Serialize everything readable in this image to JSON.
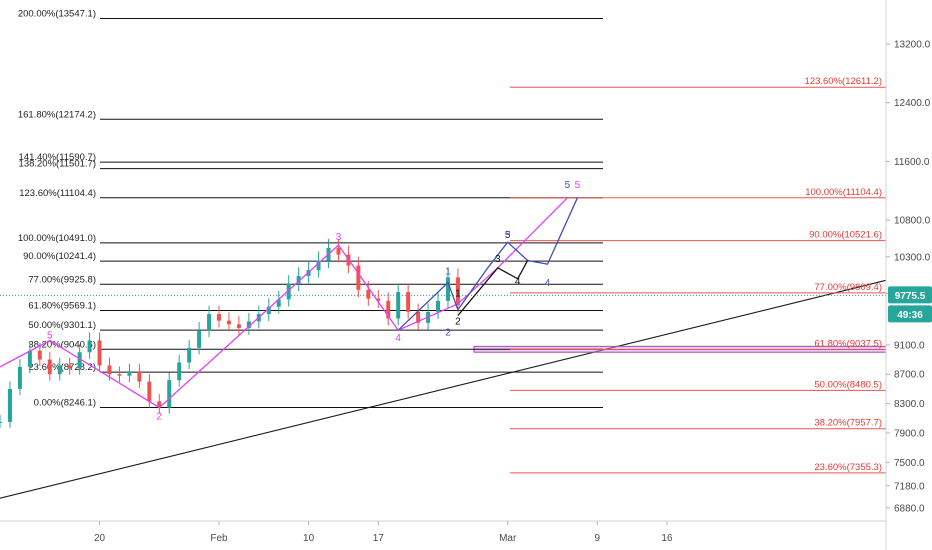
{
  "chart_data": {
    "type": "line",
    "price_axis": {
      "ticks": [
        "13200.0",
        "12400.0",
        "11600.0",
        "10800.0",
        "10300.0",
        "9800.0",
        "9100.0",
        "8700.0",
        "8300.0",
        "7900.0",
        "7500.0",
        "7180.0",
        "6880.0"
      ],
      "tick_values": [
        13200,
        12400,
        11600,
        10800,
        10300,
        9800,
        9100,
        8700,
        8300,
        7900,
        7500,
        7180,
        6880
      ],
      "ylim": [
        6700,
        13800
      ]
    },
    "time_axis": {
      "ticks": [
        "20",
        "Feb",
        "10",
        "17",
        "Mar",
        "9",
        "16"
      ],
      "tick_days": [
        20,
        32,
        41,
        48,
        61,
        70,
        77
      ],
      "xlim": [
        10,
        99
      ]
    },
    "current_price": {
      "price": "9775.5",
      "countdown": "49:36",
      "value": 9775.5,
      "color": "#26a69a"
    },
    "fib_black": [
      {
        "label": "200.00%(13547.1)",
        "value": 13547.1
      },
      {
        "label": "161.80%(12174.2)",
        "value": 12174.2
      },
      {
        "label": "141.40%(11590.7)",
        "value": 11590.7
      },
      {
        "label": "138.20%(11501.7)",
        "value": 11501.7
      },
      {
        "label": "123.60%(11104.4)",
        "value": 11104.4
      },
      {
        "label": "100.00%(10491.0)",
        "value": 10491.0
      },
      {
        "label": "90.00%(10241.4)",
        "value": 10241.4
      },
      {
        "label": "77.00%(9925.8)",
        "value": 9925.8
      },
      {
        "label": "61.80%(9569.1)",
        "value": 9569.1
      },
      {
        "label": "50.00%(9301.1)",
        "value": 9301.1
      },
      {
        "label": "38.20%(9040.5)",
        "value": 9040.5
      },
      {
        "label": "23.60%(8728.2)",
        "value": 8728.2
      },
      {
        "label": "0.00%(8246.1)",
        "value": 8246.1
      }
    ],
    "fib_red": [
      {
        "label": "123.60%(12611.2)",
        "value": 12611.2
      },
      {
        "label": "100.00%(11104.4)",
        "value": 11104.4
      },
      {
        "label": "90.00%(10521.6)",
        "value": 10521.6
      },
      {
        "label": "77.00%(9809.4)",
        "value": 9809.4
      },
      {
        "label": "61.80%(9037.5)",
        "value": 9037.5
      },
      {
        "label": "50.00%(8480.5)",
        "value": 8480.5
      },
      {
        "label": "38.20%(7957.7)",
        "value": 7957.7
      },
      {
        "label": "23.60%(7355.3)",
        "value": 7355.3
      }
    ],
    "zone": {
      "from": 9000,
      "to": 9080,
      "color": "#ce93d8"
    },
    "trendline": [
      [
        10,
        7010
      ],
      [
        99,
        9980
      ]
    ],
    "price_series": [
      [
        10,
        8050
      ],
      [
        11,
        8500
      ],
      [
        12,
        8800
      ],
      [
        13,
        9020
      ],
      [
        14,
        8900
      ],
      [
        15,
        8700
      ],
      [
        16,
        8820
      ],
      [
        17,
        8780
      ],
      [
        18,
        9000
      ],
      [
        19,
        9160
      ],
      [
        20,
        8820
      ],
      [
        21,
        8700
      ],
      [
        22,
        8680
      ],
      [
        23,
        8740
      ],
      [
        24,
        8600
      ],
      [
        25,
        8330
      ],
      [
        26,
        8246
      ],
      [
        27,
        8620
      ],
      [
        28,
        8860
      ],
      [
        29,
        9060
      ],
      [
        30,
        9300
      ],
      [
        31,
        9520
      ],
      [
        32,
        9430
      ],
      [
        33,
        9380
      ],
      [
        34,
        9330
      ],
      [
        35,
        9420
      ],
      [
        36,
        9520
      ],
      [
        37,
        9620
      ],
      [
        38,
        9720
      ],
      [
        39,
        9930
      ],
      [
        40,
        10040
      ],
      [
        41,
        10120
      ],
      [
        42,
        10250
      ],
      [
        43,
        10420
      ],
      [
        44,
        10330
      ],
      [
        45,
        10180
      ],
      [
        46,
        9850
      ],
      [
        47,
        9730
      ],
      [
        48,
        9700
      ],
      [
        49,
        9460
      ],
      [
        50,
        9820
      ],
      [
        51,
        9550
      ],
      [
        52,
        9400
      ],
      [
        53,
        9550
      ],
      [
        54,
        9700
      ],
      [
        55,
        10020
      ],
      [
        56,
        9640
      ]
    ],
    "wave_lines": [
      {
        "color": "#e040fb",
        "points": [
          [
            10,
            8800
          ],
          [
            15,
            9160
          ],
          [
            26,
            8246
          ],
          [
            44,
            10460
          ],
          [
            50,
            9300
          ],
          [
            56,
            9660
          ],
          [
            60,
            10150
          ],
          [
            67,
            11104
          ]
        ]
      },
      {
        "color": "#3f51b5",
        "points": [
          [
            50,
            9300
          ],
          [
            55,
            9950
          ],
          [
            56,
            9580
          ],
          [
            59,
            10150
          ],
          [
            61,
            10500
          ],
          [
            63,
            10250
          ],
          [
            65,
            10200
          ],
          [
            68,
            11104
          ]
        ]
      },
      {
        "color": "#111111",
        "points": [
          [
            56,
            9500
          ],
          [
            60,
            10150
          ],
          [
            62,
            10000
          ],
          [
            63,
            10250
          ]
        ]
      }
    ],
    "wave_labels": [
      {
        "text": "5",
        "day": 15,
        "price": 9190,
        "color": "#e040fb"
      },
      {
        "text": "2",
        "day": 26,
        "price": 8080,
        "color": "#e040fb"
      },
      {
        "text": "3",
        "day": 44,
        "price": 10530,
        "color": "#e040fb"
      },
      {
        "text": "4",
        "day": 50,
        "price": 9150,
        "color": "#e040fb"
      },
      {
        "text": "1",
        "day": 55,
        "price": 10060,
        "color": "#3f51b5"
      },
      {
        "text": "1",
        "day": 56,
        "price": 9760,
        "color": "#111111"
      },
      {
        "text": "2",
        "day": 56,
        "price": 9380,
        "color": "#111111"
      },
      {
        "text": "2",
        "day": 55,
        "price": 9230,
        "color": "#3f51b5"
      },
      {
        "text": "3",
        "day": 60,
        "price": 10230,
        "color": "#111111"
      },
      {
        "text": "4",
        "day": 62,
        "price": 9920,
        "color": "#111111"
      },
      {
        "text": "5",
        "day": 61,
        "price": 10560,
        "color": "#111111"
      },
      {
        "text": "3",
        "day": 61,
        "price": 10560,
        "color": "#3f51b5"
      },
      {
        "text": "4",
        "day": 65,
        "price": 9900,
        "color": "#3f51b5"
      },
      {
        "text": "5",
        "day": 67,
        "price": 11240,
        "color": "#3f51b5"
      },
      {
        "text": "5",
        "day": 68,
        "price": 11240,
        "color": "#e040fb"
      }
    ]
  }
}
